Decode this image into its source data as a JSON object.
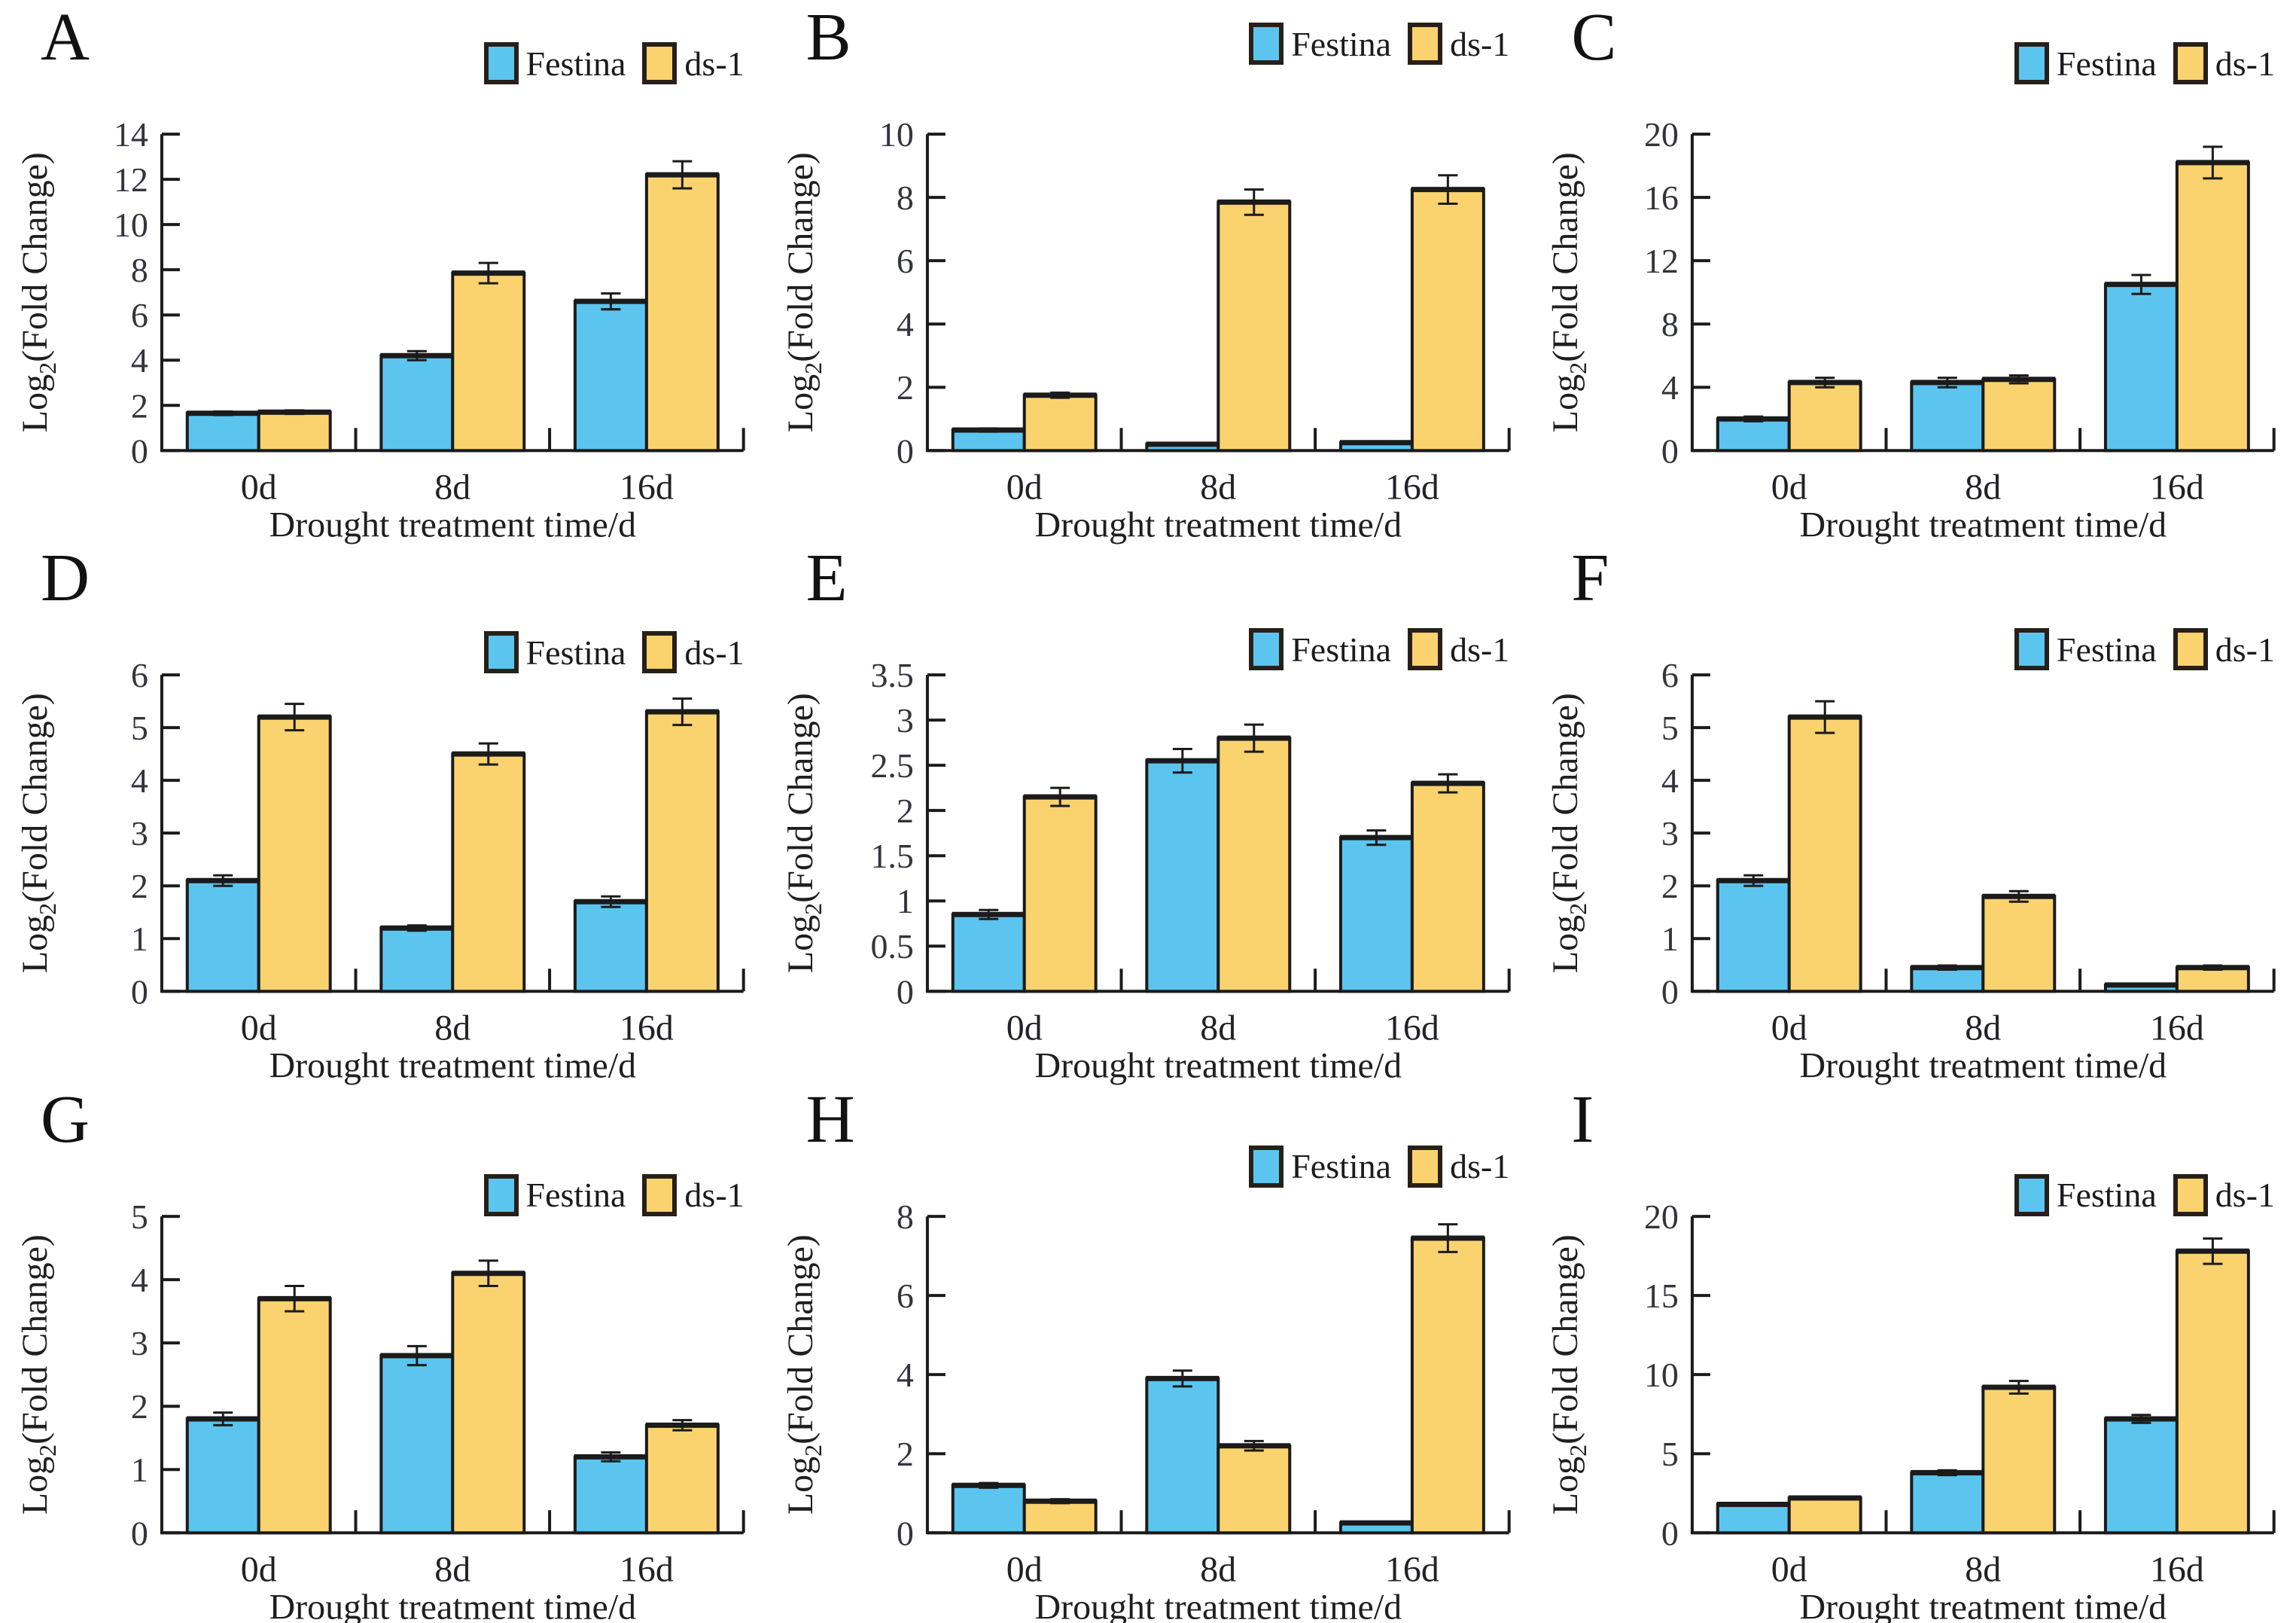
{
  "figure": {
    "xlabel": "Drought treatment time/d",
    "ylabel": {
      "base": "Log",
      "sub": "2",
      "rest": "(Fold Change)"
    },
    "categories": [
      "0d",
      "8d",
      "16d"
    ],
    "legend": [
      {
        "name": "Festina",
        "color": "#5bc5ef"
      },
      {
        "name": "ds-1",
        "color": "#fbd36e"
      }
    ],
    "colors": {
      "bar_border": "#1b1b1b",
      "axis": "#1b1b1b",
      "error_bar": "#1b1b1b"
    }
  },
  "chart_data": [
    {
      "panel": "A",
      "type": "bar",
      "categories": [
        "0d",
        "8d",
        "16d"
      ],
      "xlabel": "Drought treatment time/d",
      "ylabel": "Log2(Fold Change)",
      "ylim": [
        0,
        14
      ],
      "ytick_step": 2,
      "ytick_labels": [
        "0",
        "2",
        "4",
        "6",
        "8",
        "10",
        "12",
        "14"
      ],
      "series": [
        {
          "name": "Festina",
          "values": [
            1.65,
            4.2,
            6.6
          ],
          "errors": [
            0.08,
            0.2,
            0.35
          ]
        },
        {
          "name": "ds-1",
          "values": [
            1.7,
            7.85,
            12.2
          ],
          "errors": [
            0.08,
            0.45,
            0.6
          ]
        }
      ]
    },
    {
      "panel": "B",
      "type": "bar",
      "categories": [
        "0d",
        "8d",
        "16d"
      ],
      "xlabel": "Drought treatment time/d",
      "ylabel": "Log2(Fold Change)",
      "ylim": [
        0,
        10
      ],
      "ytick_step": 2,
      "ytick_labels": [
        "0",
        "2",
        "4",
        "6",
        "8",
        "10"
      ],
      "series": [
        {
          "name": "Festina",
          "values": [
            0.65,
            0.2,
            0.25
          ],
          "errors": [
            0.05,
            0.02,
            0.02
          ]
        },
        {
          "name": "ds-1",
          "values": [
            1.75,
            7.85,
            8.25
          ],
          "errors": [
            0.08,
            0.4,
            0.45
          ]
        }
      ]
    },
    {
      "panel": "C",
      "type": "bar",
      "categories": [
        "0d",
        "8d",
        "16d"
      ],
      "xlabel": "Drought treatment time/d",
      "ylabel": "Log2(Fold Change)",
      "ylim": [
        0,
        20
      ],
      "ytick_step": 4,
      "ytick_labels": [
        "0",
        "4",
        "8",
        "12",
        "16",
        "20"
      ],
      "series": [
        {
          "name": "Festina",
          "values": [
            2.0,
            4.3,
            10.5
          ],
          "errors": [
            0.15,
            0.3,
            0.6
          ]
        },
        {
          "name": "ds-1",
          "values": [
            4.3,
            4.5,
            18.2
          ],
          "errors": [
            0.3,
            0.25,
            1.0
          ]
        }
      ]
    },
    {
      "panel": "D",
      "type": "bar",
      "categories": [
        "0d",
        "8d",
        "16d"
      ],
      "xlabel": "Drought treatment time/d",
      "ylabel": "Log2(Fold Change)",
      "ylim": [
        0,
        6
      ],
      "ytick_step": 1,
      "ytick_labels": [
        "0",
        "1",
        "2",
        "3",
        "4",
        "5",
        "6"
      ],
      "series": [
        {
          "name": "Festina",
          "values": [
            2.1,
            1.2,
            1.7
          ],
          "errors": [
            0.1,
            0.05,
            0.1
          ]
        },
        {
          "name": "ds-1",
          "values": [
            5.2,
            4.5,
            5.3
          ],
          "errors": [
            0.25,
            0.2,
            0.25
          ]
        }
      ]
    },
    {
      "panel": "E",
      "type": "bar",
      "categories": [
        "0d",
        "8d",
        "16d"
      ],
      "xlabel": "Drought treatment time/d",
      "ylabel": "Log2(Fold Change)",
      "ylim": [
        0,
        3.5
      ],
      "ytick_step": 0.5,
      "ytick_labels": [
        "0",
        "0.5",
        "1",
        "1.5",
        "2",
        "2.5",
        "3",
        "3.5"
      ],
      "series": [
        {
          "name": "Festina",
          "values": [
            0.85,
            2.55,
            1.7
          ],
          "errors": [
            0.05,
            0.13,
            0.08
          ]
        },
        {
          "name": "ds-1",
          "values": [
            2.15,
            2.8,
            2.3
          ],
          "errors": [
            0.1,
            0.15,
            0.1
          ]
        }
      ]
    },
    {
      "panel": "F",
      "type": "bar",
      "categories": [
        "0d",
        "8d",
        "16d"
      ],
      "xlabel": "Drought treatment time/d",
      "ylabel": "Log2(Fold Change)",
      "ylim": [
        0,
        6
      ],
      "ytick_step": 1,
      "ytick_labels": [
        "0",
        "1",
        "2",
        "3",
        "4",
        "5",
        "6"
      ],
      "series": [
        {
          "name": "Festina",
          "values": [
            2.1,
            0.45,
            0.12
          ],
          "errors": [
            0.1,
            0.04,
            0.02
          ]
        },
        {
          "name": "ds-1",
          "values": [
            5.2,
            1.8,
            0.45
          ],
          "errors": [
            0.3,
            0.1,
            0.04
          ]
        }
      ]
    },
    {
      "panel": "G",
      "type": "bar",
      "categories": [
        "0d",
        "8d",
        "16d"
      ],
      "xlabel": "Drought treatment time/d",
      "ylabel": "Log2(Fold Change)",
      "ylim": [
        0,
        5
      ],
      "ytick_step": 1,
      "ytick_labels": [
        "0",
        "1",
        "2",
        "3",
        "4",
        "5"
      ],
      "series": [
        {
          "name": "Festina",
          "values": [
            1.8,
            2.8,
            1.2
          ],
          "errors": [
            0.1,
            0.15,
            0.07
          ]
        },
        {
          "name": "ds-1",
          "values": [
            3.7,
            4.1,
            1.7
          ],
          "errors": [
            0.2,
            0.2,
            0.08
          ]
        }
      ]
    },
    {
      "panel": "H",
      "type": "bar",
      "categories": [
        "0d",
        "8d",
        "16d"
      ],
      "xlabel": "Drought treatment time/d",
      "ylabel": "Log2(Fold Change)",
      "ylim": [
        0,
        8
      ],
      "ytick_step": 2,
      "ytick_labels": [
        "0",
        "2",
        "4",
        "6",
        "8"
      ],
      "series": [
        {
          "name": "Festina",
          "values": [
            1.2,
            3.9,
            0.25
          ],
          "errors": [
            0.06,
            0.2,
            0.03
          ]
        },
        {
          "name": "ds-1",
          "values": [
            0.8,
            2.2,
            7.45
          ],
          "errors": [
            0.05,
            0.12,
            0.35
          ]
        }
      ]
    },
    {
      "panel": "I",
      "type": "bar",
      "categories": [
        "0d",
        "8d",
        "16d"
      ],
      "xlabel": "Drought treatment time/d",
      "ylabel": "Log2(Fold Change)",
      "ylim": [
        0,
        20
      ],
      "ytick_step": 5,
      "ytick_labels": [
        "0",
        "5",
        "10",
        "15",
        "20"
      ],
      "series": [
        {
          "name": "Festina",
          "values": [
            1.8,
            3.8,
            7.2
          ],
          "errors": [
            0.08,
            0.15,
            0.25
          ]
        },
        {
          "name": "ds-1",
          "values": [
            2.2,
            9.2,
            17.8
          ],
          "errors": [
            0.08,
            0.4,
            0.8
          ]
        }
      ]
    }
  ]
}
